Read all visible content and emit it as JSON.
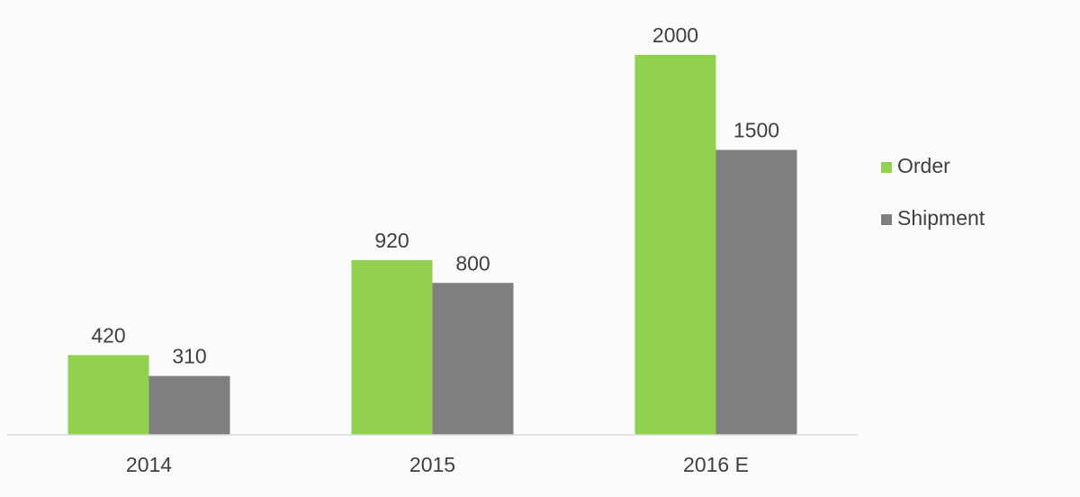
{
  "chart_data": {
    "type": "bar",
    "categories": [
      "2014",
      "2015",
      "2016 E"
    ],
    "series": [
      {
        "name": "Order",
        "color": "#92d050",
        "values": [
          420,
          920,
          2000
        ]
      },
      {
        "name": "Shipment",
        "color": "#7f7f7f",
        "values": [
          310,
          800,
          1500
        ]
      }
    ],
    "ylim": [
      0,
      2000
    ],
    "legend": "right"
  }
}
